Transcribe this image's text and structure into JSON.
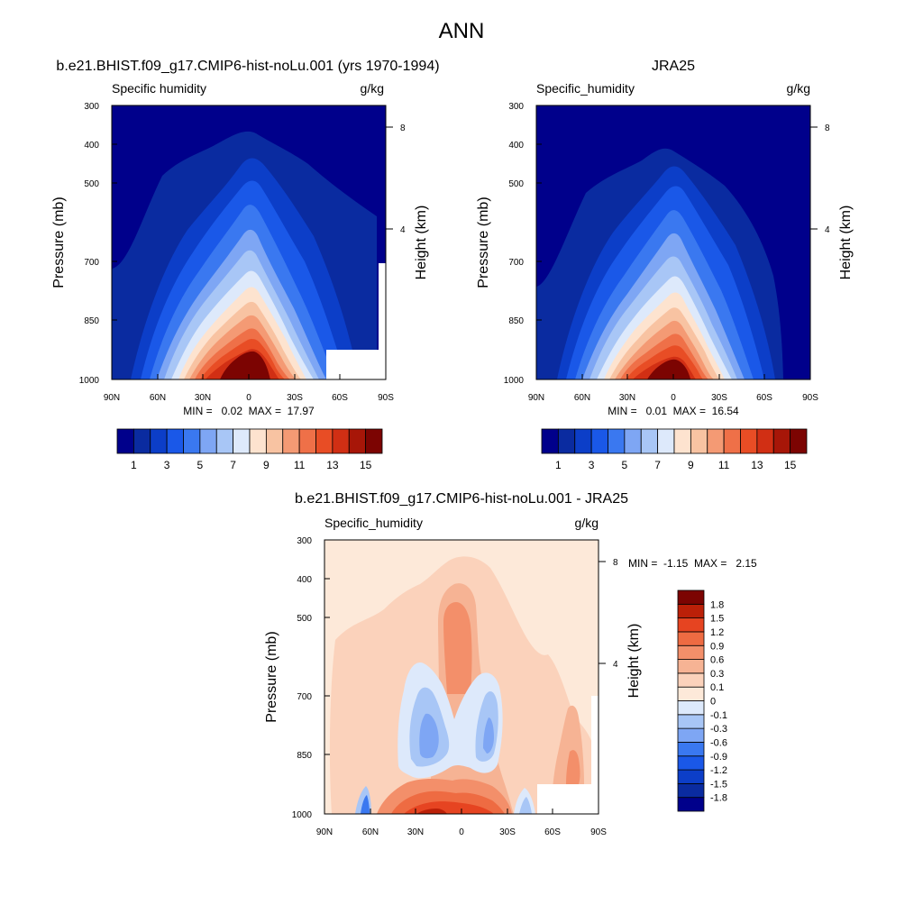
{
  "figure_title": "ANN",
  "panels": [
    {
      "id": "model",
      "title": "b.e21.BHIST.f09_g17.CMIP6-hist-noLu.001 (yrs 1970-1994)",
      "left_string": "Specific humidity",
      "right_string": "g/kg",
      "ylabel": "Pressure (mb)",
      "ylabel_right": "Height (km)",
      "stats_text": "MIN =   0.02  MAX =  17.97",
      "yticks": [
        "300",
        "400",
        "500",
        "700",
        "850",
        "1000"
      ],
      "yticks_right": [
        "8",
        "4"
      ],
      "xticks": [
        "90N",
        "60N",
        "30N",
        "0",
        "30S",
        "60S",
        "90S"
      ]
    },
    {
      "id": "obs",
      "title": "JRA25",
      "left_string": "Specific_humidity",
      "right_string": "g/kg",
      "ylabel": "Pressure (mb)",
      "ylabel_right": "Height (km)",
      "stats_text": "MIN =   0.01  MAX =  16.54",
      "yticks": [
        "300",
        "400",
        "500",
        "700",
        "850",
        "1000"
      ],
      "yticks_right": [
        "8",
        "4"
      ],
      "xticks": [
        "90N",
        "60N",
        "30N",
        "0",
        "30S",
        "60S",
        "90S"
      ]
    },
    {
      "id": "diff",
      "title": "b.e21.BHIST.f09_g17.CMIP6-hist-noLu.001 - JRA25",
      "left_string": "Specific_humidity",
      "right_string": "g/kg",
      "ylabel": "Pressure (mb)",
      "ylabel_right": "Height (km)",
      "stats_text": "MIN =  -1.15  MAX =   2.15",
      "yticks": [
        "300",
        "400",
        "500",
        "700",
        "850",
        "1000"
      ],
      "yticks_right": [
        "8",
        "4"
      ],
      "xticks": [
        "90N",
        "60N",
        "30N",
        "0",
        "30S",
        "60S",
        "90S"
      ]
    }
  ],
  "colorbar_abs": {
    "colors": [
      "#00008b",
      "#0a2ba0",
      "#0c3ec8",
      "#1a58e8",
      "#3a78f0",
      "#7ea6f4",
      "#a8c6f6",
      "#dde9fb",
      "#fde3cf",
      "#f8c3a2",
      "#f49a74",
      "#ef7048",
      "#e84d25",
      "#d12f14",
      "#a71608",
      "#7c0402"
    ],
    "labels": [
      "1",
      "3",
      "5",
      "7",
      "9",
      "11",
      "13",
      "15"
    ]
  },
  "colorbar_diff": {
    "colors": [
      "#00008b",
      "#0a2ba0",
      "#0c3ec8",
      "#1a58e8",
      "#3a78f0",
      "#7ea6f4",
      "#a8c6f6",
      "#dde9fb",
      "#fde9d9",
      "#fbd2bb",
      "#f6b394",
      "#f38f6a",
      "#ee6b42",
      "#e64421",
      "#bb2008",
      "#7c0402"
    ],
    "labels": [
      "1.8",
      "1.5",
      "1.2",
      "0.9",
      "0.6",
      "0.3",
      "0.1",
      "0",
      "-0.1",
      "-0.3",
      "-0.6",
      "-0.9",
      "-1.2",
      "-1.5",
      "-1.8"
    ]
  },
  "chart_data": [
    {
      "type": "heatmap",
      "title": "b.e21.BHIST.f09_g17.CMIP6-hist-noLu.001 (yrs 1970-1994)",
      "variable": "Specific humidity",
      "units": "g/kg",
      "xlabel": "",
      "ylabel": "Pressure (mb)",
      "ylabel_right": "Height (km)",
      "x_range": [
        90,
        -90
      ],
      "y_range_mb": [
        1000,
        300
      ],
      "y_scale": "log",
      "levels": [
        1,
        2,
        3,
        4,
        5,
        6,
        7,
        8,
        9,
        10,
        11,
        12,
        13,
        14,
        15
      ],
      "peak_location": {
        "lat": 0,
        "p": 1000
      },
      "min": 0.02,
      "max": 17.97
    },
    {
      "type": "heatmap",
      "title": "JRA25",
      "variable": "Specific_humidity",
      "units": "g/kg",
      "xlabel": "",
      "ylabel": "Pressure (mb)",
      "ylabel_right": "Height (km)",
      "x_range": [
        90,
        -90
      ],
      "y_range_mb": [
        1000,
        300
      ],
      "y_scale": "log",
      "levels": [
        1,
        2,
        3,
        4,
        5,
        6,
        7,
        8,
        9,
        10,
        11,
        12,
        13,
        14,
        15
      ],
      "peak_location": {
        "lat": 0,
        "p": 1000
      },
      "min": 0.01,
      "max": 16.54
    },
    {
      "type": "heatmap",
      "title": "b.e21.BHIST.f09_g17.CMIP6-hist-noLu.001 - JRA25",
      "variable": "Specific_humidity",
      "units": "g/kg",
      "xlabel": "",
      "ylabel": "Pressure (mb)",
      "ylabel_right": "Height (km)",
      "x_range": [
        90,
        -90
      ],
      "y_range_mb": [
        1000,
        300
      ],
      "y_scale": "log",
      "levels": [
        -1.8,
        -1.5,
        -1.2,
        -0.9,
        -0.6,
        -0.3,
        -0.1,
        0,
        0.1,
        0.3,
        0.6,
        0.9,
        1.2,
        1.5,
        1.8
      ],
      "min": -1.15,
      "max": 2.15
    }
  ]
}
